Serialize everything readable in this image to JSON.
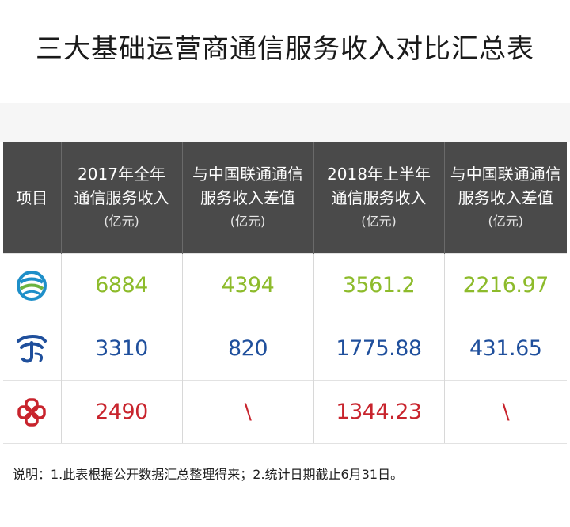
{
  "title": "三大基础运营商通信服务收入对比汇总表",
  "headers": {
    "item": "项目",
    "col1": {
      "line1": "2017年全年",
      "line2": "通信服务收入",
      "unit": "(亿元)"
    },
    "col2": {
      "line1": "与中国联通通信",
      "line2": "服务收入差值",
      "unit": "(亿元)"
    },
    "col3": {
      "line1": "2018年上半年",
      "line2": "通信服务收入",
      "unit": "(亿元)"
    },
    "col4": {
      "line1": "与中国联通通信",
      "line2": "服务收入差值",
      "unit": "(亿元)"
    }
  },
  "rows": [
    {
      "logo": "china-mobile-logo",
      "color": "#8dbb2b",
      "v1": "6884",
      "v2": "4394",
      "v3": "3561.2",
      "v4": "2216.97"
    },
    {
      "logo": "china-telecom-logo",
      "color": "#1f4f9c",
      "v1": "3310",
      "v2": "820",
      "v3": "1775.88",
      "v4": "431.65"
    },
    {
      "logo": "china-unicom-logo",
      "color": "#c8242d",
      "v1": "2490",
      "v2": "\\",
      "v3": "1344.23",
      "v4": "\\"
    }
  ],
  "note": "说明：1.此表根据公开数据汇总整理得来；2.统计日期截止6月31日。"
}
